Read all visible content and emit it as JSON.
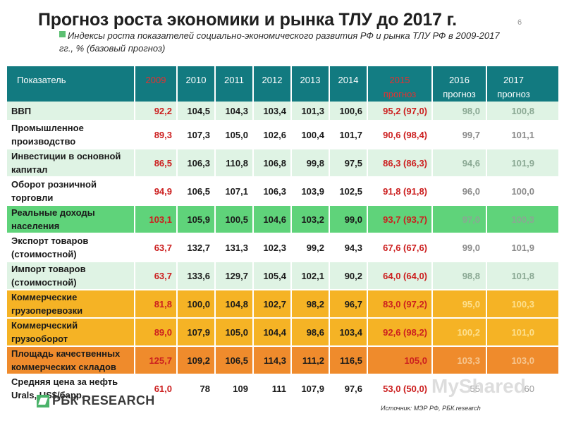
{
  "title": "Прогноз роста экономики и рынка ТЛУ до 2017 г.",
  "slide_number": "6",
  "subtitle": "Индексы роста показателей социально-экономического развития РФ и рынка ТЛУ РФ в 2009-2017 гг., % (базовый прогноз)",
  "header": {
    "label": "Показатель",
    "y2009": "2009",
    "y2010": "2010",
    "y2011": "2011",
    "y2012": "2012",
    "y2013": "2013",
    "y2014": "2014",
    "y2015a": "2015",
    "y2015b": "прогноз",
    "y2016a": "2016",
    "y2016b": "прогноз",
    "y2017a": "2017",
    "y2017b": "прогноз"
  },
  "rows": [
    {
      "label": "ВВП",
      "v2009": "92,2",
      "v2010": "104,5",
      "v2011": "104,3",
      "v2012": "103,4",
      "v2013": "101,3",
      "v2014": "100,6",
      "v2015": "95,2 (97,0)",
      "v2016": "98,0",
      "v2017": "100,8"
    },
    {
      "label": "Промышленное производство",
      "v2009": "89,3",
      "v2010": "107,3",
      "v2011": "105,0",
      "v2012": "102,6",
      "v2013": "100,4",
      "v2014": "101,7",
      "v2015": "90,6 (98,4)",
      "v2016": "99,7",
      "v2017": "101,1"
    },
    {
      "label": "Инвестиции в основной капитал",
      "v2009": "86,5",
      "v2010": "106,3",
      "v2011": "110,8",
      "v2012": "106,8",
      "v2013": "99,8",
      "v2014": "97,5",
      "v2015": "86,3 (86,3)",
      "v2016": "94,6",
      "v2017": "101,9"
    },
    {
      "label": "Оборот розничной торговли",
      "v2009": "94,9",
      "v2010": "106,5",
      "v2011": "107,1",
      "v2012": "106,3",
      "v2013": "103,9",
      "v2014": "102,5",
      "v2015": "91,8 (91,8)",
      "v2016": "96,0",
      "v2017": "100,0"
    },
    {
      "label": "Реальные доходы населения",
      "v2009": "103,1",
      "v2010": "105,9",
      "v2011": "100,5",
      "v2012": "104,6",
      "v2013": "103,2",
      "v2014": "99,0",
      "v2015": "93,7 (93,7)",
      "v2016": "97,0",
      "v2017": "100,3"
    },
    {
      "label": "Экспорт товаров (стоимостной)",
      "v2009": "63,7",
      "v2010": "132,7",
      "v2011": "131,3",
      "v2012": "102,3",
      "v2013": "99,2",
      "v2014": "94,3",
      "v2015": "67,6 (67,6)",
      "v2016": "99,0",
      "v2017": "101,9"
    },
    {
      "label": "Импорт товаров (стоимостной)",
      "v2009": "63,7",
      "v2010": "133,6",
      "v2011": "129,7",
      "v2012": "105,4",
      "v2013": "102,1",
      "v2014": "90,2",
      "v2015": "64,0 (64,0)",
      "v2016": "98,8",
      "v2017": "101,8"
    },
    {
      "label": "Коммерческие грузоперевозки",
      "v2009": "81,8",
      "v2010": "100,0",
      "v2011": "104,8",
      "v2012": "102,7",
      "v2013": "98,2",
      "v2014": "96,7",
      "v2015": "83,0 (97,2)",
      "v2016": "95,0",
      "v2017": "100,3"
    },
    {
      "label": "Коммерческий грузооборот",
      "v2009": "89,0",
      "v2010": "107,9",
      "v2011": "105,0",
      "v2012": "104,4",
      "v2013": "98,6",
      "v2014": "103,4",
      "v2015": "92,6 (98,2)",
      "v2016": "100,2",
      "v2017": "101,0"
    },
    {
      "label": "Площадь качественных коммерческих складов",
      "v2009": "125,7",
      "v2010": "109,2",
      "v2011": "106,5",
      "v2012": "114,3",
      "v2013": "111,2",
      "v2014": "116,5",
      "v2015": "105,0",
      "v2016": "103,3",
      "v2017": "103,0"
    },
    {
      "label": "Средняя цена за нефть Urals, US$/барр.",
      "v2009": "61,0",
      "v2010": "78",
      "v2011": "109",
      "v2012": "111",
      "v2013": "107,9",
      "v2014": "97,6",
      "v2015": "53,0 (50,0)",
      "v2016": "55",
      "v2017": "60"
    }
  ],
  "logo": "РБК RESEARCH",
  "source": "Источник: МЭР РФ, РБК.research",
  "watermark": "MyShared",
  "colors": {
    "header": "#127a80",
    "row_green": "#dff3e4",
    "row_lime": "#5fd37a",
    "row_yellow": "#f5b325",
    "row_orange": "#ef8b2c",
    "highlight_red": "#cc1f1f"
  }
}
